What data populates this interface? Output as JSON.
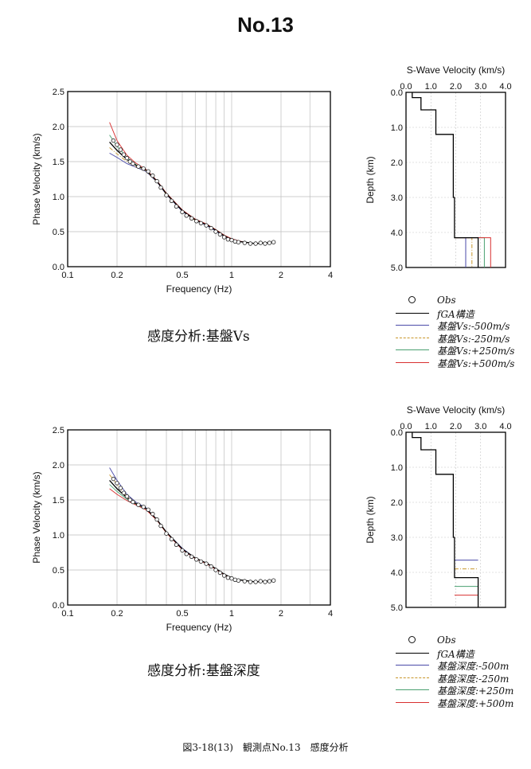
{
  "page_title": "No.13",
  "figure_caption": "図3-18(13)　観測点No.13　感度分析",
  "colors": {
    "obs": "#222222",
    "fga": "#000000",
    "m500": "#4a4aa8",
    "m250": "#c8962a",
    "p250": "#4aa070",
    "p500": "#d83030"
  },
  "sections": [
    {
      "caption": "感度分析:基盤Vs",
      "legend": [
        {
          "label": "Obs",
          "style": "circle",
          "color": "#222222"
        },
        {
          "label": "fGA構造",
          "style": "line",
          "color": "#000000"
        },
        {
          "label": "基盤Vs:-500m/s",
          "style": "line",
          "color": "#4a4aa8"
        },
        {
          "label": "基盤Vs:-250m/s",
          "style": "dashdot",
          "color": "#c8962a"
        },
        {
          "label": "基盤Vs:+250m/s",
          "style": "line",
          "color": "#4aa070"
        },
        {
          "label": "基盤Vs:+500m/s",
          "style": "line",
          "color": "#d83030"
        }
      ]
    },
    {
      "caption": "感度分析:基盤深度",
      "legend": [
        {
          "label": "Obs",
          "style": "circle",
          "color": "#222222"
        },
        {
          "label": "fGA構造",
          "style": "line",
          "color": "#000000"
        },
        {
          "label": "基盤深度:-500m",
          "style": "line",
          "color": "#4a4aa8"
        },
        {
          "label": "基盤深度:-250m",
          "style": "dashdot",
          "color": "#c8962a"
        },
        {
          "label": "基盤深度:+250m",
          "style": "line",
          "color": "#4aa070"
        },
        {
          "label": "基盤深度:+500m",
          "style": "line",
          "color": "#d83030"
        }
      ]
    }
  ],
  "chart_data": [
    {
      "type": "scatter",
      "xlabel": "Frequency (Hz)",
      "ylabel": "Phase Velocity (km/s)",
      "xscale": "log",
      "xlim": [
        0.1,
        4
      ],
      "ylim": [
        0,
        2.5
      ],
      "xticks": [
        "0.1",
        "0.2",
        "0.5",
        "1",
        "2",
        "4"
      ],
      "yticks": [
        "0.0",
        "0.5",
        "1.0",
        "1.5",
        "2.0",
        "2.5"
      ],
      "grid": true,
      "obs": {
        "x": [
          0.19,
          0.2,
          0.21,
          0.22,
          0.23,
          0.24,
          0.25,
          0.27,
          0.29,
          0.31,
          0.33,
          0.35,
          0.37,
          0.4,
          0.43,
          0.46,
          0.5,
          0.53,
          0.57,
          0.61,
          0.65,
          0.7,
          0.75,
          0.8,
          0.85,
          0.9,
          0.95,
          1.0,
          1.05,
          1.1,
          1.2,
          1.3,
          1.4,
          1.5,
          1.6,
          1.7,
          1.8
        ],
        "y": [
          1.8,
          1.74,
          1.67,
          1.6,
          1.55,
          1.5,
          1.47,
          1.43,
          1.4,
          1.36,
          1.3,
          1.22,
          1.13,
          1.02,
          0.94,
          0.86,
          0.78,
          0.73,
          0.69,
          0.65,
          0.62,
          0.59,
          0.55,
          0.5,
          0.46,
          0.42,
          0.39,
          0.38,
          0.36,
          0.35,
          0.34,
          0.33,
          0.33,
          0.34,
          0.33,
          0.34,
          0.35
        ]
      },
      "series": [
        {
          "name": "fGA構造",
          "x": [
            0.18,
            0.2,
            0.23,
            0.26,
            0.3,
            0.35,
            0.4,
            0.5,
            0.6,
            0.7,
            0.8,
            0.9,
            1.0,
            1.1,
            1.2,
            1.4,
            1.6,
            1.8
          ],
          "y": [
            1.78,
            1.66,
            1.53,
            1.45,
            1.38,
            1.22,
            1.04,
            0.8,
            0.67,
            0.6,
            0.52,
            0.44,
            0.39,
            0.36,
            0.35,
            0.33,
            0.34,
            0.35
          ]
        },
        {
          "name": "基盤Vs:-500m/s",
          "x": [
            0.18,
            0.2,
            0.23,
            0.26,
            0.3,
            0.35,
            0.4,
            0.5,
            0.6,
            0.7,
            0.8,
            0.9,
            1.0,
            1.1,
            1.2,
            1.4,
            1.6,
            1.8
          ],
          "y": [
            1.62,
            1.56,
            1.47,
            1.42,
            1.36,
            1.21,
            1.03,
            0.79,
            0.66,
            0.59,
            0.51,
            0.43,
            0.38,
            0.36,
            0.35,
            0.33,
            0.34,
            0.35
          ]
        },
        {
          "name": "基盤Vs:-250m/s",
          "x": [
            0.18,
            0.2,
            0.23,
            0.26,
            0.3,
            0.35,
            0.4,
            0.5,
            0.6,
            0.7,
            0.8,
            0.9,
            1.0,
            1.1,
            1.2,
            1.4,
            1.6,
            1.8
          ],
          "y": [
            1.7,
            1.61,
            1.5,
            1.43,
            1.37,
            1.21,
            1.03,
            0.8,
            0.66,
            0.6,
            0.52,
            0.44,
            0.39,
            0.36,
            0.35,
            0.33,
            0.34,
            0.35
          ]
        },
        {
          "name": "基盤Vs:+250m/s",
          "x": [
            0.18,
            0.2,
            0.23,
            0.26,
            0.3,
            0.35,
            0.4,
            0.5,
            0.6,
            0.7,
            0.8,
            0.9,
            1.0,
            1.1,
            1.2,
            1.4,
            1.6,
            1.8
          ],
          "y": [
            1.88,
            1.72,
            1.56,
            1.46,
            1.38,
            1.22,
            1.04,
            0.81,
            0.67,
            0.61,
            0.53,
            0.45,
            0.39,
            0.36,
            0.35,
            0.33,
            0.34,
            0.35
          ]
        },
        {
          "name": "基盤Vs:+500m/s",
          "x": [
            0.18,
            0.2,
            0.23,
            0.26,
            0.3,
            0.35,
            0.4,
            0.5,
            0.6,
            0.7,
            0.8,
            0.9,
            1.0,
            1.1,
            1.2,
            1.4,
            1.6,
            1.8
          ],
          "y": [
            2.06,
            1.8,
            1.59,
            1.48,
            1.39,
            1.23,
            1.05,
            0.81,
            0.68,
            0.61,
            0.53,
            0.45,
            0.4,
            0.37,
            0.35,
            0.33,
            0.34,
            0.35
          ]
        }
      ]
    },
    {
      "type": "line",
      "title": "S-Wave Velocity (km/s)",
      "ylabel": "Depth (km)",
      "xlim": [
        0,
        4
      ],
      "ylim": [
        5,
        0
      ],
      "xticks": [
        "0.0",
        "1.0",
        "2.0",
        "3.0",
        "4.0"
      ],
      "yticks": [
        "0.0",
        "1.0",
        "2.0",
        "3.0",
        "4.0",
        "5.0"
      ],
      "grid": true,
      "series": [
        {
          "name": "fGA構造",
          "x": [
            0.25,
            0.25,
            0.6,
            0.6,
            1.2,
            1.2,
            1.9,
            1.9,
            1.95,
            1.95,
            2.9,
            2.9
          ],
          "y": [
            0,
            0.15,
            0.15,
            0.5,
            0.5,
            1.2,
            1.2,
            3.0,
            3.0,
            4.15,
            4.15,
            5.0
          ]
        },
        {
          "name": "基盤Vs:-500m/s",
          "x": [
            1.95,
            2.4,
            2.4
          ],
          "y": [
            4.15,
            4.15,
            5.0
          ]
        },
        {
          "name": "基盤Vs:-250m/s",
          "x": [
            1.95,
            2.65,
            2.65
          ],
          "y": [
            4.15,
            4.15,
            5.0
          ]
        },
        {
          "name": "基盤Vs:+250m/s",
          "x": [
            1.95,
            3.15,
            3.15
          ],
          "y": [
            4.15,
            4.15,
            5.0
          ]
        },
        {
          "name": "基盤Vs:+500m/s",
          "x": [
            1.95,
            3.4,
            3.4
          ],
          "y": [
            4.15,
            4.15,
            5.0
          ]
        }
      ]
    },
    {
      "type": "scatter",
      "xlabel": "Frequency (Hz)",
      "ylabel": "Phase Velocity (km/s)",
      "xscale": "log",
      "xlim": [
        0.1,
        4
      ],
      "ylim": [
        0,
        2.5
      ],
      "xticks": [
        "0.1",
        "0.2",
        "0.5",
        "1",
        "2",
        "4"
      ],
      "yticks": [
        "0.0",
        "0.5",
        "1.0",
        "1.5",
        "2.0",
        "2.5"
      ],
      "grid": true,
      "obs": {
        "x": [
          0.19,
          0.2,
          0.21,
          0.22,
          0.23,
          0.24,
          0.25,
          0.27,
          0.29,
          0.31,
          0.33,
          0.35,
          0.37,
          0.4,
          0.43,
          0.46,
          0.5,
          0.53,
          0.57,
          0.61,
          0.65,
          0.7,
          0.75,
          0.8,
          0.85,
          0.9,
          0.95,
          1.0,
          1.05,
          1.1,
          1.2,
          1.3,
          1.4,
          1.5,
          1.6,
          1.7,
          1.8
        ],
        "y": [
          1.8,
          1.74,
          1.67,
          1.6,
          1.55,
          1.5,
          1.47,
          1.43,
          1.4,
          1.36,
          1.3,
          1.22,
          1.13,
          1.02,
          0.94,
          0.86,
          0.78,
          0.73,
          0.69,
          0.65,
          0.62,
          0.59,
          0.55,
          0.5,
          0.46,
          0.42,
          0.39,
          0.38,
          0.36,
          0.35,
          0.34,
          0.33,
          0.33,
          0.34,
          0.33,
          0.34,
          0.35
        ]
      },
      "series": [
        {
          "name": "fGA構造",
          "x": [
            0.18,
            0.2,
            0.23,
            0.26,
            0.3,
            0.35,
            0.4,
            0.5,
            0.6,
            0.7,
            0.8,
            0.9,
            1.0,
            1.1,
            1.2,
            1.4,
            1.6,
            1.8
          ],
          "y": [
            1.78,
            1.66,
            1.53,
            1.45,
            1.38,
            1.22,
            1.04,
            0.8,
            0.67,
            0.6,
            0.52,
            0.44,
            0.39,
            0.36,
            0.35,
            0.33,
            0.34,
            0.35
          ]
        },
        {
          "name": "基盤深度:-500m",
          "x": [
            0.18,
            0.2,
            0.23,
            0.26,
            0.3,
            0.35,
            0.4,
            0.5,
            0.6,
            0.7,
            0.8,
            0.9,
            1.0,
            1.1,
            1.2,
            1.4,
            1.6,
            1.8
          ],
          "y": [
            1.96,
            1.78,
            1.58,
            1.47,
            1.39,
            1.22,
            1.04,
            0.81,
            0.67,
            0.6,
            0.52,
            0.44,
            0.39,
            0.36,
            0.35,
            0.33,
            0.34,
            0.35
          ]
        },
        {
          "name": "基盤深度:-250m",
          "x": [
            0.18,
            0.2,
            0.23,
            0.26,
            0.3,
            0.35,
            0.4,
            0.5,
            0.6,
            0.7,
            0.8,
            0.9,
            1.0,
            1.1,
            1.2,
            1.4,
            1.6,
            1.8
          ],
          "y": [
            1.86,
            1.72,
            1.55,
            1.46,
            1.38,
            1.22,
            1.04,
            0.8,
            0.67,
            0.6,
            0.52,
            0.44,
            0.39,
            0.36,
            0.35,
            0.33,
            0.34,
            0.35
          ]
        },
        {
          "name": "基盤深度:+250m",
          "x": [
            0.18,
            0.2,
            0.23,
            0.26,
            0.3,
            0.35,
            0.4,
            0.5,
            0.6,
            0.7,
            0.8,
            0.9,
            1.0,
            1.1,
            1.2,
            1.4,
            1.6,
            1.8
          ],
          "y": [
            1.72,
            1.62,
            1.51,
            1.44,
            1.37,
            1.21,
            1.03,
            0.8,
            0.66,
            0.6,
            0.52,
            0.44,
            0.39,
            0.36,
            0.35,
            0.33,
            0.34,
            0.35
          ]
        },
        {
          "name": "基盤深度:+500m",
          "x": [
            0.18,
            0.2,
            0.23,
            0.26,
            0.3,
            0.35,
            0.4,
            0.5,
            0.6,
            0.7,
            0.8,
            0.9,
            1.0,
            1.1,
            1.2,
            1.4,
            1.6,
            1.8
          ],
          "y": [
            1.66,
            1.58,
            1.49,
            1.43,
            1.36,
            1.21,
            1.03,
            0.79,
            0.66,
            0.59,
            0.51,
            0.43,
            0.38,
            0.36,
            0.35,
            0.33,
            0.34,
            0.35
          ]
        }
      ]
    },
    {
      "type": "line",
      "title": "S-Wave Velocity (km/s)",
      "ylabel": "Depth (km)",
      "xlim": [
        0,
        4
      ],
      "ylim": [
        5,
        0
      ],
      "xticks": [
        "0.0",
        "1.0",
        "2.0",
        "3.0",
        "4.0"
      ],
      "yticks": [
        "0.0",
        "1.0",
        "2.0",
        "3.0",
        "4.0",
        "5.0"
      ],
      "grid": true,
      "series": [
        {
          "name": "fGA構造",
          "x": [
            0.25,
            0.25,
            0.6,
            0.6,
            1.2,
            1.2,
            1.9,
            1.9,
            1.95,
            1.95,
            2.9,
            2.9
          ],
          "y": [
            0,
            0.15,
            0.15,
            0.5,
            0.5,
            1.2,
            1.2,
            3.0,
            3.0,
            4.15,
            4.15,
            5.0
          ]
        },
        {
          "name": "基盤深度:-500m",
          "x": [
            1.95,
            2.9
          ],
          "y": [
            3.65,
            3.65
          ]
        },
        {
          "name": "基盤深度:-250m",
          "x": [
            1.95,
            2.9
          ],
          "y": [
            3.9,
            3.9
          ]
        },
        {
          "name": "基盤深度:+250m",
          "x": [
            1.95,
            2.9
          ],
          "y": [
            4.4,
            4.4
          ]
        },
        {
          "name": "基盤深度:+500m",
          "x": [
            1.95,
            2.9
          ],
          "y": [
            4.65,
            4.65
          ]
        }
      ]
    }
  ]
}
